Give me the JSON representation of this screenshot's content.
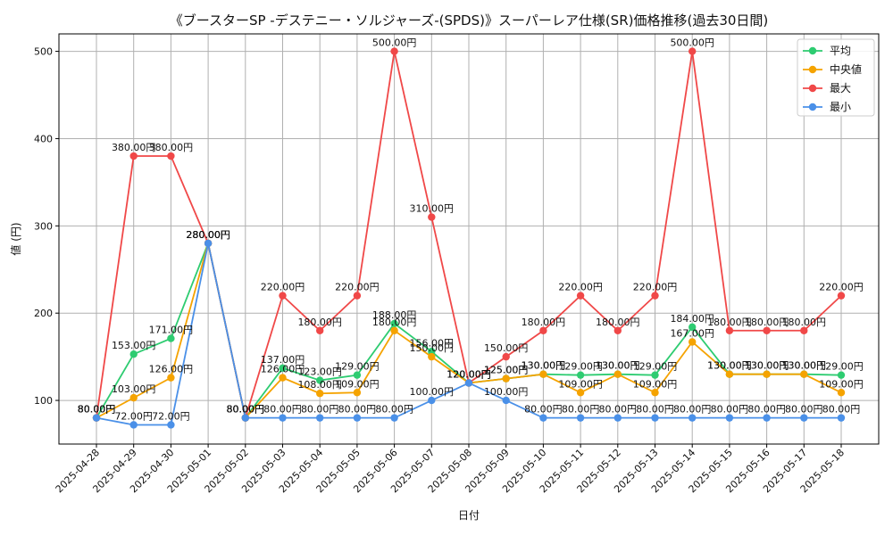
{
  "chart_data": {
    "type": "line",
    "title": "《ブースターSP -デステニー・ソルジャーズ-(SPDS)》スーパーレア仕様(SR)価格推移(過去30日間)",
    "xlabel": "日付",
    "ylabel": "値 (円)",
    "ylim": [
      50,
      520
    ],
    "yticks": [
      100,
      200,
      300,
      400,
      500
    ],
    "grid": true,
    "legend_position": "top-right",
    "categories": [
      "2025-04-28",
      "2025-04-29",
      "2025-04-30",
      "2025-05-01",
      "2025-05-02",
      "2025-05-03",
      "2025-05-04",
      "2025-05-05",
      "2025-05-06",
      "2025-05-07",
      "2025-05-08",
      "2025-05-09",
      "2025-05-10",
      "2025-05-11",
      "2025-05-12",
      "2025-05-13",
      "2025-05-14",
      "2025-05-15",
      "2025-05-16",
      "2025-05-17",
      "2025-05-18"
    ],
    "series": [
      {
        "name": "平均",
        "color": "#2ecc71",
        "values": [
          80,
          153,
          171,
          280,
          80,
          137,
          123,
          129,
          188,
          156,
          120,
          125,
          130,
          129,
          130,
          129,
          184,
          130,
          130,
          130,
          129
        ]
      },
      {
        "name": "中央値",
        "color": "#f5a300",
        "values": [
          80,
          103,
          126,
          280,
          80,
          126,
          108,
          109,
          180,
          150,
          120,
          125,
          130,
          109,
          130,
          109,
          167,
          130,
          130,
          130,
          109
        ]
      },
      {
        "name": "最大",
        "color": "#f04848",
        "values": [
          80,
          380,
          380,
          280,
          80,
          220,
          180,
          220,
          500,
          310,
          120,
          150,
          180,
          220,
          180,
          220,
          500,
          180,
          180,
          180,
          220
        ]
      },
      {
        "name": "最小",
        "color": "#4a90e8",
        "values": [
          80,
          72,
          72,
          280,
          80,
          80,
          80,
          80,
          80,
          100,
          120,
          100,
          80,
          80,
          80,
          80,
          80,
          80,
          80,
          80,
          80
        ]
      }
    ],
    "value_suffix": "円"
  }
}
